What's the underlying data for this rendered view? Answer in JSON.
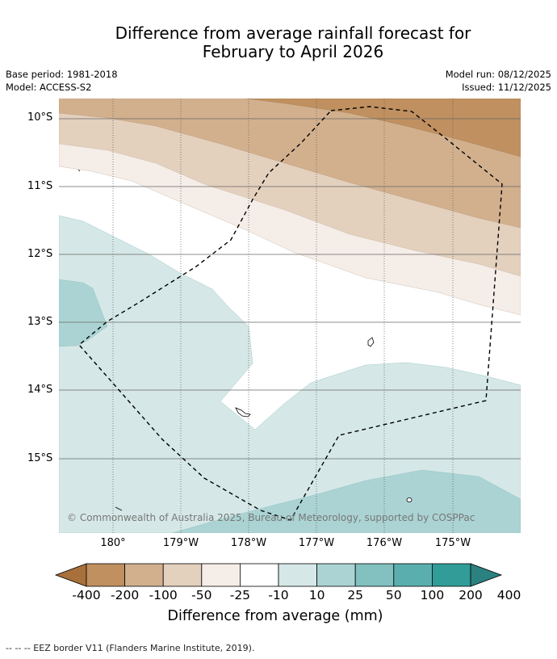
{
  "title_line1": "Difference from average rainfall forecast for",
  "title_line2": "February to April 2026",
  "base_period": "Base period: 1981-2018",
  "model": "Model: ACCESS-S2",
  "model_run": "Model run: 08/12/2025",
  "issued": "Issued: 11/12/2025",
  "lat_labels": [
    "10°S",
    "11°S",
    "12°S",
    "13°S",
    "14°S",
    "15°S"
  ],
  "lon_labels": [
    "180°",
    "179°W",
    "178°W",
    "177°W",
    "176°W",
    "175°W"
  ],
  "credit": "© Commonwealth of Australia 2025, Bureau of Meteorology, supported by COSPPac",
  "colorbar": {
    "title": "Difference from average (mm)",
    "ticks": [
      "-400",
      "-200",
      "-100",
      "-50",
      "-25",
      "-10",
      "10",
      "25",
      "50",
      "100",
      "200",
      "400"
    ],
    "colors": [
      "#a8703a",
      "#c09060",
      "#d2b08e",
      "#e3d0bd",
      "#f5ede7",
      "#ffffff",
      "#d5e8e7",
      "#abd3d3",
      "#83c0c0",
      "#5baeae",
      "#329c98",
      "#2a817f"
    ]
  },
  "footer": "--  --  -- EEZ border V11 (Flanders Marine Institute, 2019).",
  "colors": {
    "brown_dark": "#c09060",
    "brown_mid": "#d2b08e",
    "brown_light": "#e3d0bd",
    "brown_pale": "#f5ede7",
    "teal_pale": "#d5e8e7",
    "teal_light": "#abd3d3"
  }
}
